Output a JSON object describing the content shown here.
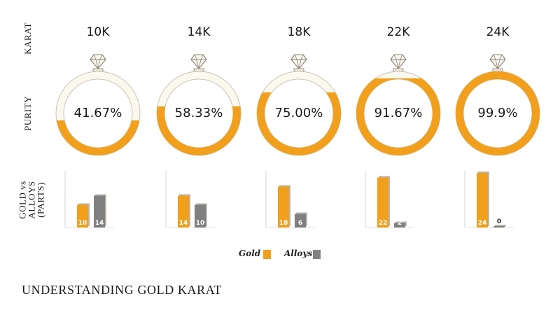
{
  "page": {
    "title": "UNDERSTANDING GOLD KARAT"
  },
  "row_labels": {
    "karat": "KARAT",
    "purity": "PURITY",
    "parts_line1": "GOLD vs ALLOYS",
    "parts_line2": "(PARTS)"
  },
  "legend": {
    "gold_label": "Gold",
    "alloys_label": "Alloys"
  },
  "colors": {
    "gold": "#f29f1c",
    "alloys": "#808080",
    "ring_outline": "#c9c3b4",
    "ring_empty": "#fbf8ee"
  },
  "chart_data": {
    "type": "bar",
    "categories": [
      "10K",
      "14K",
      "18K",
      "22K",
      "24K"
    ],
    "purity_labels": [
      "41.67%",
      "58.33%",
      "75.00%",
      "91.67%",
      "99.9%"
    ],
    "purity": [
      41.67,
      58.33,
      75.0,
      91.67,
      99.9
    ],
    "series": [
      {
        "name": "Gold",
        "values": [
          10,
          14,
          18,
          22,
          24
        ],
        "value_labels": [
          "10",
          "14",
          "18",
          "22",
          "24"
        ]
      },
      {
        "name": "Alloys",
        "values": [
          14,
          10,
          6,
          2,
          0
        ],
        "value_labels": [
          "14",
          "10",
          "6",
          "2",
          "0"
        ]
      }
    ],
    "ylim": [
      0,
      24
    ],
    "legend": "bottom-center"
  }
}
